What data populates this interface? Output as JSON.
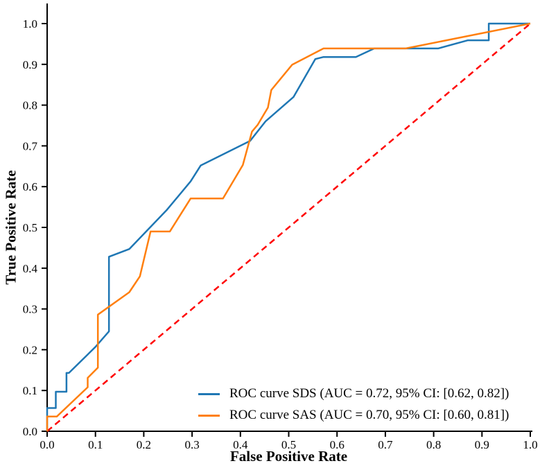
{
  "figure": {
    "background": "#ffffff",
    "text_color": "#000000",
    "axis_color": "#000000"
  },
  "chart_data": {
    "type": "line",
    "subtype": "roc-curves",
    "title": "",
    "xlabel": "False Positive Rate",
    "ylabel": "True Positive Rate",
    "xlim": [
      0.0,
      1.0
    ],
    "ylim": [
      0.0,
      1.0
    ],
    "grid": false,
    "legend_position": "lower right",
    "x_ticks": {
      "values": [
        0.0,
        0.1,
        0.2,
        0.3,
        0.4,
        0.5,
        0.6,
        0.7,
        0.8,
        0.9,
        1.0
      ],
      "labels": [
        "0.0",
        "0.1",
        "0.2",
        "0.3",
        "0.4",
        "0.5",
        "0.6",
        "0.7",
        "0.8",
        "0.9",
        "1.0"
      ]
    },
    "y_ticks": {
      "values": [
        0.0,
        0.1,
        0.2,
        0.3,
        0.4,
        0.5,
        0.6,
        0.7,
        0.8,
        0.9,
        1.0
      ],
      "labels": [
        "0.0",
        "0.1",
        "0.2",
        "0.3",
        "0.4",
        "0.5",
        "0.6",
        "0.7",
        "0.8",
        "0.9",
        "1.0"
      ]
    },
    "series": [
      {
        "name": "roc-curve-sds",
        "legend_label": "ROC curve SDS (AUC = 0.72, 95% CI: [0.62, 0.82])",
        "auc": 0.72,
        "ci_95": [
          0.62,
          0.82
        ],
        "color": "#1f77b4",
        "dash": null,
        "width": 2.5,
        "points": [
          [
            0.0,
            0.0
          ],
          [
            0.0,
            0.057
          ],
          [
            0.018,
            0.057
          ],
          [
            0.018,
            0.097
          ],
          [
            0.04,
            0.097
          ],
          [
            0.04,
            0.143
          ],
          [
            0.045,
            0.143
          ],
          [
            0.1,
            0.207
          ],
          [
            0.128,
            0.245
          ],
          [
            0.128,
            0.428
          ],
          [
            0.17,
            0.447
          ],
          [
            0.247,
            0.542
          ],
          [
            0.297,
            0.613
          ],
          [
            0.318,
            0.652
          ],
          [
            0.42,
            0.712
          ],
          [
            0.452,
            0.76
          ],
          [
            0.51,
            0.82
          ],
          [
            0.555,
            0.913
          ],
          [
            0.572,
            0.918
          ],
          [
            0.639,
            0.918
          ],
          [
            0.677,
            0.939
          ],
          [
            0.809,
            0.939
          ],
          [
            0.871,
            0.959
          ],
          [
            0.914,
            0.959
          ],
          [
            0.914,
            1.0
          ],
          [
            1.0,
            1.0
          ]
        ]
      },
      {
        "name": "roc-curve-sas",
        "legend_label": "ROC curve SAS (AUC = 0.70, 95% CI: [0.60, 0.81])",
        "auc": 0.7,
        "ci_95": [
          0.6,
          0.81
        ],
        "color": "#ff7f0e",
        "dash": null,
        "width": 2.5,
        "points": [
          [
            0.0,
            0.0
          ],
          [
            0.0,
            0.036
          ],
          [
            0.02,
            0.036
          ],
          [
            0.084,
            0.108
          ],
          [
            0.084,
            0.131
          ],
          [
            0.105,
            0.156
          ],
          [
            0.105,
            0.286
          ],
          [
            0.17,
            0.341
          ],
          [
            0.192,
            0.38
          ],
          [
            0.214,
            0.49
          ],
          [
            0.254,
            0.49
          ],
          [
            0.297,
            0.571
          ],
          [
            0.364,
            0.571
          ],
          [
            0.405,
            0.653
          ],
          [
            0.424,
            0.735
          ],
          [
            0.436,
            0.752
          ],
          [
            0.457,
            0.794
          ],
          [
            0.464,
            0.837
          ],
          [
            0.507,
            0.899
          ],
          [
            0.572,
            0.939
          ],
          [
            0.742,
            0.939
          ],
          [
            1.0,
            1.0
          ]
        ]
      },
      {
        "name": "chance-diagonal",
        "legend_label": null,
        "color": "#ff0000",
        "dash": [
          9,
          6
        ],
        "width": 2.5,
        "points": [
          [
            0.0,
            0.0
          ],
          [
            1.0,
            1.0
          ]
        ]
      }
    ]
  }
}
